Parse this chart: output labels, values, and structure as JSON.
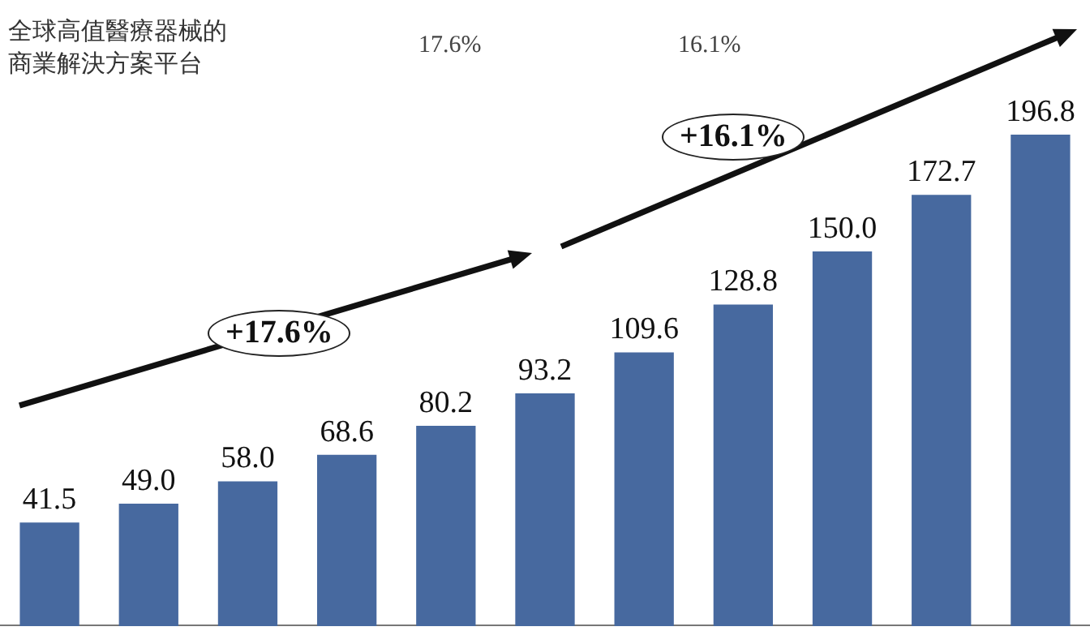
{
  "chart_data": {
    "type": "bar",
    "title": "全球高值醫療器械的商業解決方案平台",
    "categories": [
      null,
      null,
      null,
      null,
      null,
      null,
      null,
      null,
      null,
      null,
      null
    ],
    "values": [
      41.5,
      49.0,
      58.0,
      68.6,
      80.2,
      93.2,
      109.6,
      128.8,
      150.0,
      172.7,
      196.8
    ],
    "value_labels": [
      "41.5",
      "49.0",
      "58.0",
      "68.6",
      "80.2",
      "93.2",
      "109.6",
      "128.8",
      "150.0",
      "172.7",
      "196.8"
    ],
    "color": "#47699f",
    "annotations": [
      "17.6%",
      "16.1%",
      "+17.6%",
      "+16.1%"
    ]
  }
}
